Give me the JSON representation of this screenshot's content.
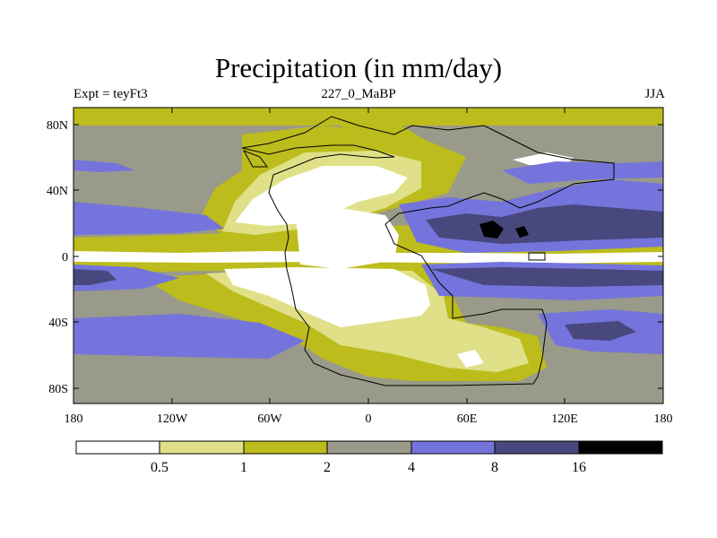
{
  "title": "Precipitation (in mm/day)",
  "subtitle_left": "Expt = teyFt3",
  "subtitle_center": "227_0_MaBP",
  "subtitle_right": "JJA",
  "map": {
    "x_ticks": [
      "180",
      "120W",
      "60W",
      "0",
      "60E",
      "120E",
      "180"
    ],
    "y_ticks": [
      "80N",
      "40N",
      "0",
      "40S",
      "80S"
    ]
  },
  "legend": {
    "colors": [
      "#ffffff",
      "#e0e088",
      "#bcbc1c",
      "#9a9a8a",
      "#7474dc",
      "#48487e",
      "#000000"
    ],
    "labels": [
      "0.5",
      "1",
      "2",
      "4",
      "8",
      "16"
    ]
  }
}
